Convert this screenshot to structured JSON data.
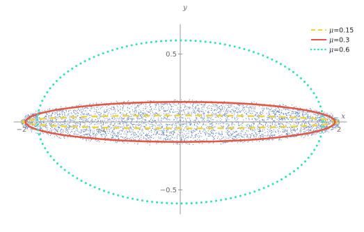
{
  "chart_data": {
    "type": "scatter",
    "title": "",
    "xlabel": "x",
    "ylabel": "y",
    "xlim": [
      -2.1,
      2.1
    ],
    "ylim": [
      -0.68,
      0.72
    ],
    "x_ticks": [
      {
        "value": -2,
        "label": "−2"
      },
      {
        "value": -1,
        "label": "−1"
      },
      {
        "value": 1,
        "label": "1"
      },
      {
        "value": 2,
        "label": "2"
      }
    ],
    "y_ticks": [
      {
        "value": 0.5,
        "label": "0.5"
      },
      {
        "value": -0.5,
        "label": "−0.5"
      }
    ],
    "point_cloud": {
      "shape": "ellipse",
      "semi_axis_x": 2.0,
      "semi_axis_y": 0.15,
      "edge_jitter_y": 0.03,
      "color": "#5B7DB8"
    },
    "series": [
      {
        "mu": "0.15",
        "semi_axis_x": 1.99,
        "semi_axis_y": 0.048,
        "color": "#EFD23B",
        "style": "dashed"
      },
      {
        "mu": "0.3",
        "semi_axis_x": 1.95,
        "semi_axis_y": 0.147,
        "color": "#E25844",
        "style": "solid"
      },
      {
        "mu": "0.6",
        "semi_axis_x": 1.8,
        "semi_axis_y": 0.6,
        "color": "#36E0B5",
        "style": "dotted"
      }
    ],
    "legend": {
      "position": "top-right",
      "symbol": "μ",
      "separator": "="
    },
    "grid": false
  }
}
